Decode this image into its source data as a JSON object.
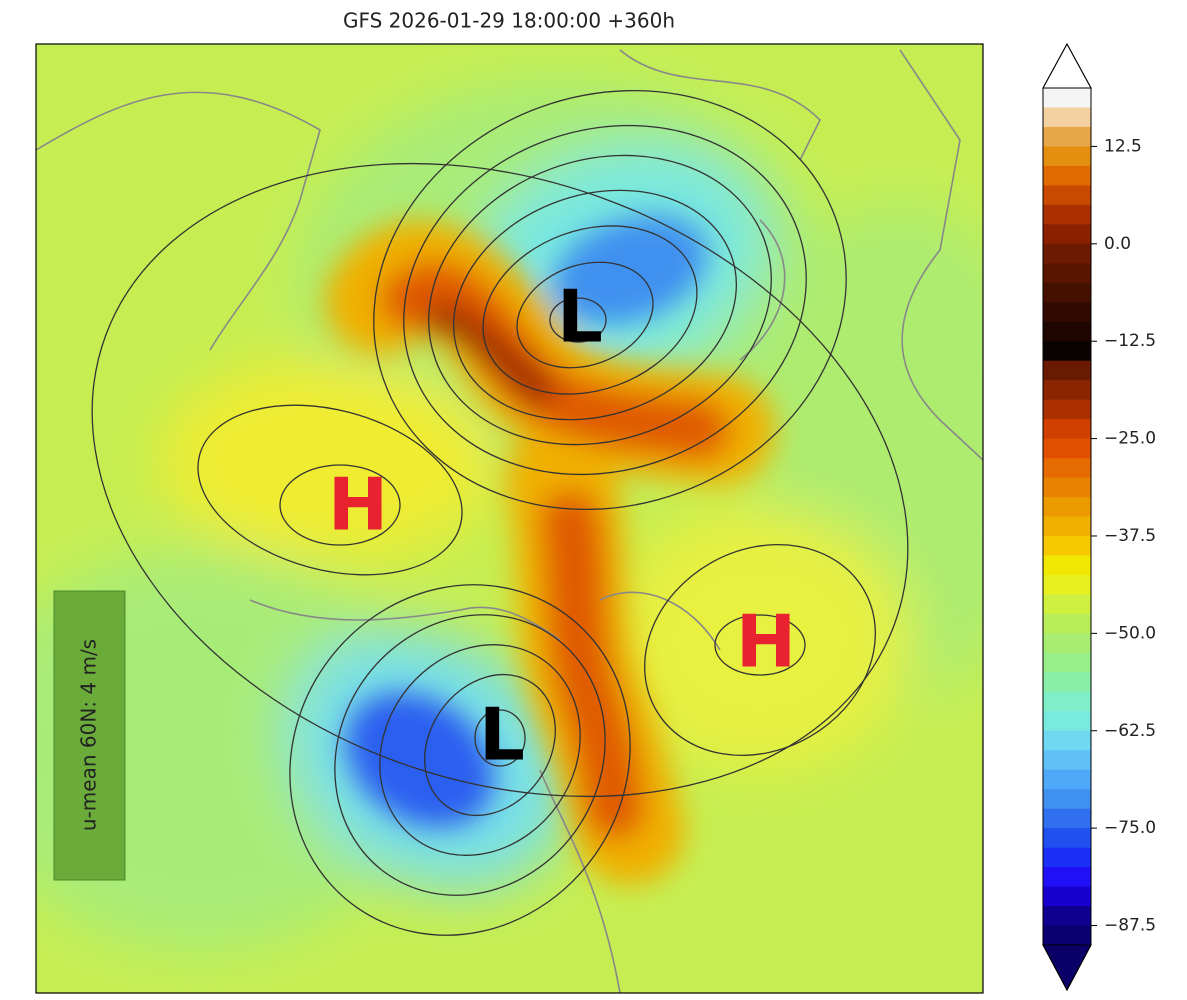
{
  "title": "GFS 2026-01-29 18:00:00 +360h",
  "annotation": "u-mean 60N: 4 m/s",
  "centers": [
    "L",
    "L",
    "H",
    "H"
  ],
  "colorbar": {
    "clim": [
      -90,
      20
    ],
    "ticks": [
      {
        "value": 12.5,
        "label": "12.5"
      },
      {
        "value": 0,
        "label": "0.0"
      },
      {
        "value": -12.5,
        "label": "−12.5"
      },
      {
        "value": -25,
        "label": "−25.0"
      },
      {
        "value": -37.5,
        "label": "−37.5"
      },
      {
        "value": -50,
        "label": "−50.0"
      },
      {
        "value": -62.5,
        "label": "−62.5"
      },
      {
        "value": -75,
        "label": "−75.0"
      },
      {
        "value": -87.5,
        "label": "−87.5"
      }
    ],
    "colors": [
      "#f5f5f5",
      "#f3d1a0",
      "#e8a84a",
      "#e58f10",
      "#e06a00",
      "#c84a00",
      "#aa3000",
      "#8a2000",
      "#6e1a00",
      "#5a1500",
      "#451000",
      "#300a00",
      "#1e0500",
      "#0a0200",
      "#6a1a00",
      "#8a2500",
      "#aa3000",
      "#d04000",
      "#e05000",
      "#e56a00",
      "#e88200",
      "#eb9a00",
      "#f0b000",
      "#f5c800",
      "#f0e800",
      "#e8f020",
      "#d0f040",
      "#b8ee5a",
      "#a8ec70",
      "#98ee88",
      "#88eea8",
      "#80eec8",
      "#78eae0",
      "#70d8f0",
      "#60c0f8",
      "#50a8f8",
      "#4090f0",
      "#3070f0",
      "#2050f0",
      "#1a30f8",
      "#2010f8",
      "#1800d0",
      "#100090",
      "#0a0070"
    ],
    "over": "#ffffff",
    "under": "#0a0068"
  }
}
